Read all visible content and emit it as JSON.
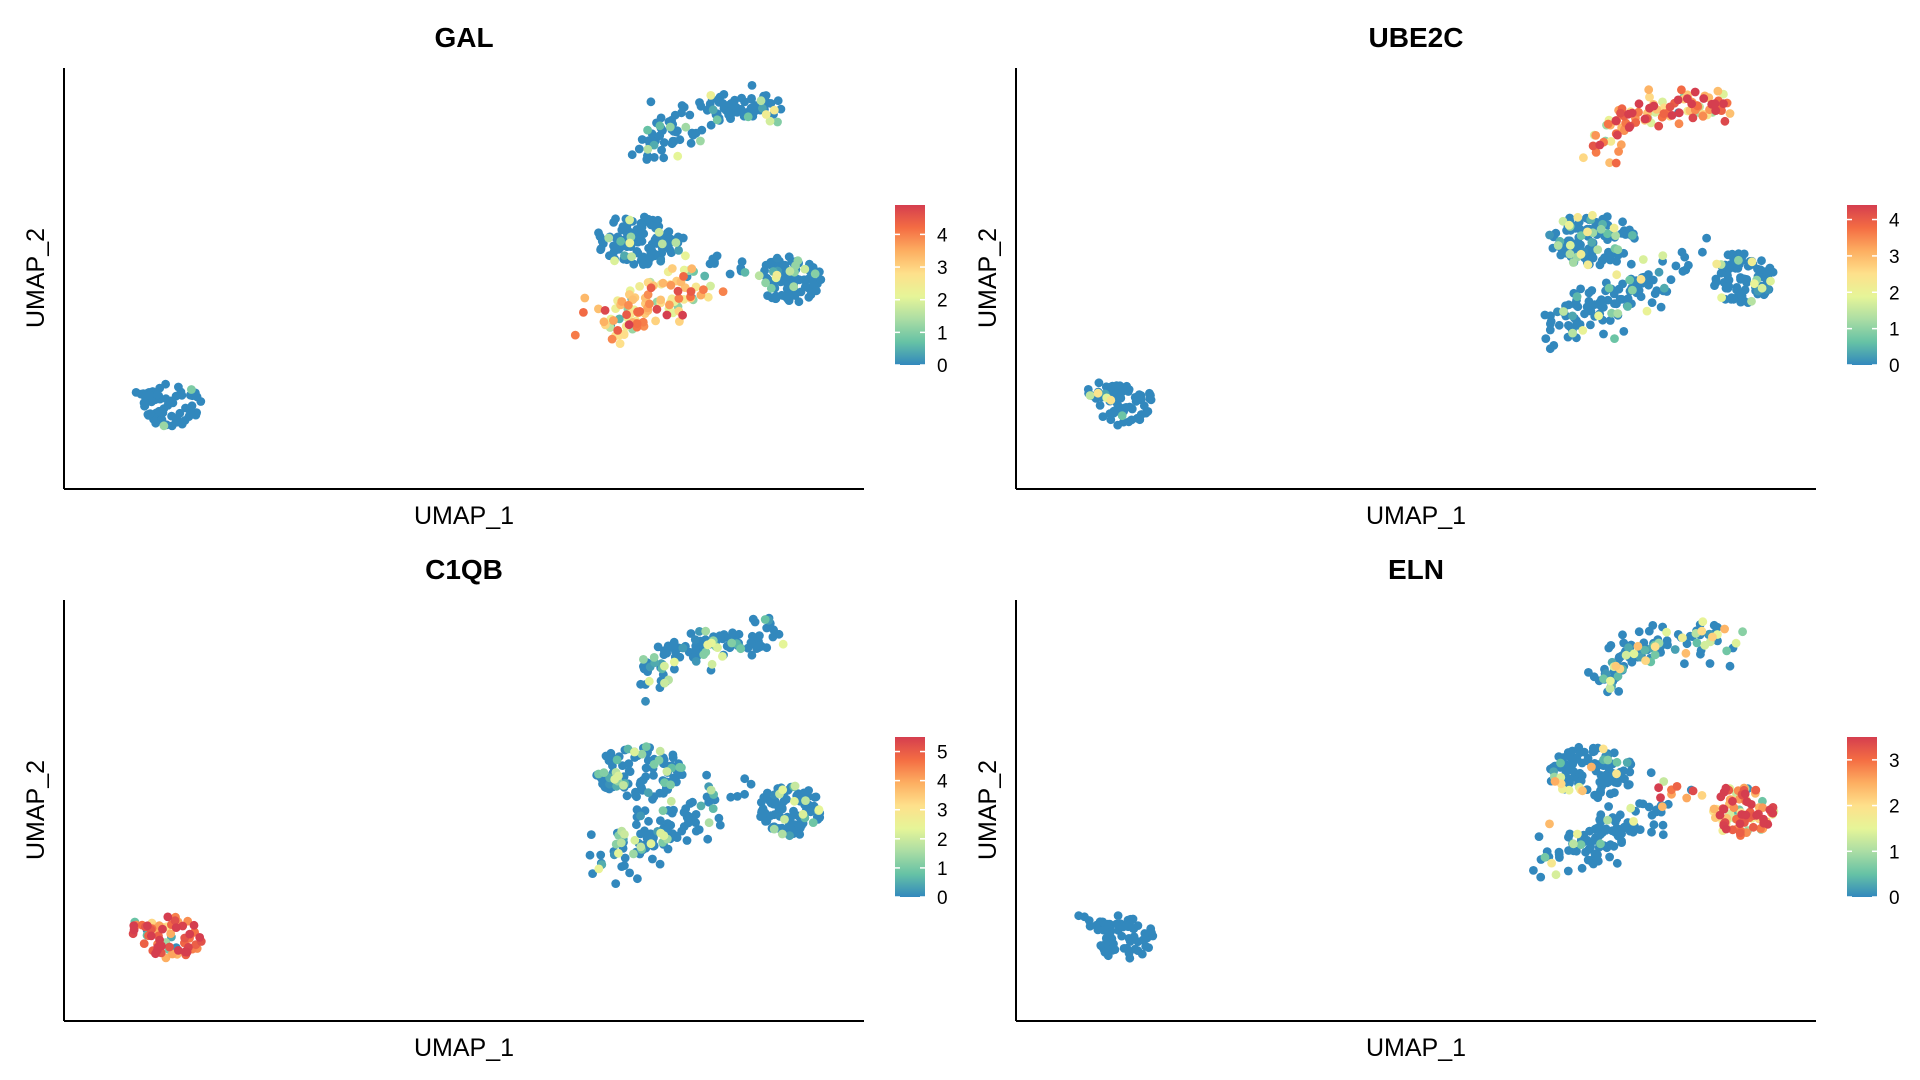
{
  "colors": {
    "scale": [
      "#3288BD",
      "#66C2A5",
      "#ABDDA4",
      "#E6F598",
      "#FEE08B",
      "#FDAE61",
      "#F46D43",
      "#D53E4F"
    ],
    "axis": "#000000"
  },
  "chart_data": [
    {
      "type": "scatter",
      "title": "GAL",
      "xlabel": "UMAP_1",
      "ylabel": "UMAP_2",
      "color_scale": {
        "ticks": [
          0,
          1,
          2,
          3,
          4
        ],
        "limits": [
          0,
          4.9
        ]
      },
      "grid": false,
      "legend_position": "right",
      "expression": {
        "upper_cluster": 0.6,
        "left_lobe": 0.2,
        "right_lobe": 0.4,
        "lower_branch": 3.2,
        "small_cluster": 0.05
      }
    },
    {
      "type": "scatter",
      "title": "UBE2C",
      "xlabel": "UMAP_1",
      "ylabel": "UMAP_2",
      "color_scale": {
        "ticks": [
          0,
          1,
          2,
          3,
          4
        ],
        "limits": [
          0,
          4.4
        ]
      },
      "grid": false,
      "legend_position": "right",
      "expression": {
        "upper_cluster": 3.6,
        "left_lobe": 0.4,
        "right_lobe": 0.3,
        "lower_branch": 0.4,
        "small_cluster": 0.2
      }
    },
    {
      "type": "scatter",
      "title": "C1QB",
      "xlabel": "UMAP_1",
      "ylabel": "UMAP_2",
      "color_scale": {
        "ticks": [
          0,
          1,
          2,
          3,
          4,
          5
        ],
        "limits": [
          0,
          5.5
        ]
      },
      "grid": false,
      "legend_position": "right",
      "expression": {
        "upper_cluster": 0.7,
        "left_lobe": 0.6,
        "right_lobe": 0.6,
        "lower_branch": 0.5,
        "small_cluster": 5.0
      }
    },
    {
      "type": "scatter",
      "title": "ELN",
      "xlabel": "UMAP_1",
      "ylabel": "UMAP_2",
      "color_scale": {
        "ticks": [
          0,
          1,
          2,
          3
        ],
        "limits": [
          0,
          3.5
        ]
      },
      "grid": false,
      "legend_position": "right",
      "expression": {
        "upper_cluster": 1.0,
        "left_lobe": 0.4,
        "right_lobe": 2.9,
        "lower_branch": 0.3,
        "small_cluster": 0.0
      }
    }
  ]
}
